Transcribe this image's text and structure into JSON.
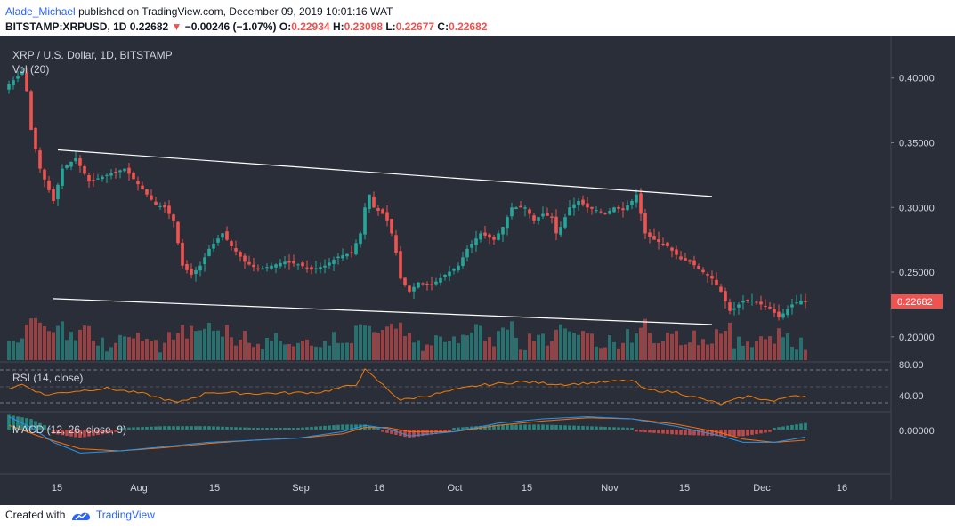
{
  "header": {
    "author": "Alade_Michael",
    "published_text": "published on TradingView.com, December 09, 2019 10:01:16 WAT",
    "symbol": "BITSTAMP:XRPUSD, 1D",
    "last": "0.22682",
    "change": "−0.00246 (−1.07%)",
    "o_label": "O:",
    "o_value": "0.22934",
    "h_label": "H:",
    "h_value": "0.23098",
    "l_label": "L:",
    "l_value": "0.22677",
    "c_label": "C:",
    "c_value": "0.22682"
  },
  "footer": {
    "created_with": "Created with",
    "brand": "TradingView"
  },
  "colors": {
    "background": "#2a2e39",
    "up": "#26a69a",
    "down": "#ef5350",
    "trendline": "#ffffff",
    "rsi": "#f57c00",
    "macd": "#2196f3",
    "signal": "#ff6d00",
    "axis_text": "#d1d4dc",
    "price_tag": "#ef5350"
  },
  "chart_data": {
    "type": "candlestick",
    "title": "XRP / U.S. Dollar, 1D, BITSTAMP",
    "volume_label": "Vol (20)",
    "rsi_label": "RSI (14, close)",
    "macd_label": "MACD (12, 26, close, 9)",
    "price_axis": {
      "ticks": [
        "0.40000",
        "0.35000",
        "0.30000",
        "0.25000",
        "0.20000"
      ],
      "ylim": [
        0.182,
        0.428
      ]
    },
    "rsi_axis": {
      "ticks": [
        "80.00",
        "40.00"
      ]
    },
    "macd_axis": {
      "ticks": [
        "0.00000"
      ]
    },
    "current_price": "0.22682",
    "x_labels": [
      "15",
      "Aug",
      "15",
      "Sep",
      "16",
      "Oct",
      "15",
      "Nov",
      "15",
      "Dec",
      "16"
    ],
    "trendlines": [
      {
        "name": "upper",
        "from": [
          "2019-07-17",
          0.3445
        ],
        "to": [
          "2019-12-11",
          0.3085
        ]
      },
      {
        "name": "lower",
        "from": [
          "2019-07-16",
          0.2295
        ],
        "to": [
          "2019-12-11",
          0.2095
        ]
      }
    ],
    "waypoints": [
      [
        0,
        0.395
      ],
      [
        3,
        0.405
      ],
      [
        4,
        0.39
      ],
      [
        5,
        0.36
      ],
      [
        7,
        0.33
      ],
      [
        10,
        0.305
      ],
      [
        12,
        0.33
      ],
      [
        15,
        0.338
      ],
      [
        18,
        0.32
      ],
      [
        22,
        0.325
      ],
      [
        26,
        0.33
      ],
      [
        29,
        0.318
      ],
      [
        31,
        0.31
      ],
      [
        33,
        0.302
      ],
      [
        35,
        0.3
      ],
      [
        37,
        0.29
      ],
      [
        39,
        0.255
      ],
      [
        41,
        0.248
      ],
      [
        43,
        0.255
      ],
      [
        45,
        0.268
      ],
      [
        48,
        0.28
      ],
      [
        50,
        0.27
      ],
      [
        53,
        0.258
      ],
      [
        56,
        0.252
      ],
      [
        59,
        0.255
      ],
      [
        62,
        0.258
      ],
      [
        65,
        0.256
      ],
      [
        68,
        0.252
      ],
      [
        71,
        0.255
      ],
      [
        74,
        0.262
      ],
      [
        77,
        0.265
      ],
      [
        79,
        0.28
      ],
      [
        80,
        0.3
      ],
      [
        81,
        0.31
      ],
      [
        82,
        0.3
      ],
      [
        84,
        0.295
      ],
      [
        85,
        0.29
      ],
      [
        86,
        0.28
      ],
      [
        87,
        0.265
      ],
      [
        88,
        0.245
      ],
      [
        90,
        0.235
      ],
      [
        92,
        0.242
      ],
      [
        95,
        0.24
      ],
      [
        98,
        0.248
      ],
      [
        101,
        0.255
      ],
      [
        103,
        0.268
      ],
      [
        106,
        0.28
      ],
      [
        109,
        0.275
      ],
      [
        111,
        0.285
      ],
      [
        113,
        0.3
      ],
      [
        116,
        0.3
      ],
      [
        118,
        0.29
      ],
      [
        120,
        0.295
      ],
      [
        122,
        0.292
      ],
      [
        123,
        0.28
      ],
      [
        124,
        0.285
      ],
      [
        126,
        0.3
      ],
      [
        128,
        0.305
      ],
      [
        130,
        0.3
      ],
      [
        132,
        0.298
      ],
      [
        134,
        0.295
      ],
      [
        136,
        0.3
      ],
      [
        138,
        0.298
      ],
      [
        140,
        0.305
      ],
      [
        141,
        0.31
      ],
      [
        142,
        0.295
      ],
      [
        143,
        0.28
      ],
      [
        145,
        0.275
      ],
      [
        148,
        0.27
      ],
      [
        151,
        0.26
      ],
      [
        153,
        0.258
      ],
      [
        156,
        0.25
      ],
      [
        158,
        0.245
      ],
      [
        160,
        0.235
      ],
      [
        162,
        0.22
      ],
      [
        163,
        0.222
      ],
      [
        165,
        0.228
      ],
      [
        167,
        0.228
      ],
      [
        169,
        0.225
      ],
      [
        171,
        0.222
      ],
      [
        173,
        0.215
      ],
      [
        174,
        0.218
      ],
      [
        176,
        0.225
      ],
      [
        178,
        0.228
      ],
      [
        179,
        0.2268
      ]
    ],
    "rsi_waypoints": [
      [
        0,
        52
      ],
      [
        3,
        58
      ],
      [
        8,
        42
      ],
      [
        15,
        48
      ],
      [
        22,
        52
      ],
      [
        30,
        44
      ],
      [
        38,
        30
      ],
      [
        45,
        46
      ],
      [
        55,
        44
      ],
      [
        70,
        46
      ],
      [
        78,
        58
      ],
      [
        80,
        80
      ],
      [
        83,
        63
      ],
      [
        88,
        34
      ],
      [
        95,
        42
      ],
      [
        105,
        56
      ],
      [
        115,
        62
      ],
      [
        125,
        58
      ],
      [
        140,
        64
      ],
      [
        143,
        50
      ],
      [
        150,
        46
      ],
      [
        160,
        28
      ],
      [
        166,
        40
      ],
      [
        172,
        32
      ],
      [
        176,
        42
      ],
      [
        179,
        40
      ]
    ],
    "macd_waypoints": [
      [
        0,
        0.012
      ],
      [
        5,
        0.002
      ],
      [
        10,
        -0.012
      ],
      [
        16,
        -0.022
      ],
      [
        25,
        -0.02
      ],
      [
        35,
        -0.016
      ],
      [
        45,
        -0.012
      ],
      [
        55,
        -0.01
      ],
      [
        65,
        -0.008
      ],
      [
        75,
        -0.002
      ],
      [
        80,
        0.004
      ],
      [
        85,
        0.001
      ],
      [
        90,
        -0.006
      ],
      [
        100,
        -0.002
      ],
      [
        110,
        0.006
      ],
      [
        120,
        0.01
      ],
      [
        130,
        0.012
      ],
      [
        140,
        0.01
      ],
      [
        150,
        0.003
      ],
      [
        160,
        -0.006
      ],
      [
        165,
        -0.012
      ],
      [
        172,
        -0.012
      ],
      [
        179,
        -0.007
      ]
    ],
    "signal_waypoints": [
      [
        0,
        0.004
      ],
      [
        8,
        -0.008
      ],
      [
        16,
        -0.018
      ],
      [
        25,
        -0.02
      ],
      [
        35,
        -0.017
      ],
      [
        45,
        -0.013
      ],
      [
        55,
        -0.01
      ],
      [
        65,
        -0.008
      ],
      [
        75,
        -0.004
      ],
      [
        80,
        0.002
      ],
      [
        85,
        0.002
      ],
      [
        90,
        -0.002
      ],
      [
        100,
        -0.002
      ],
      [
        110,
        0.004
      ],
      [
        120,
        0.008
      ],
      [
        130,
        0.011
      ],
      [
        140,
        0.01
      ],
      [
        150,
        0.005
      ],
      [
        160,
        -0.003
      ],
      [
        165,
        -0.009
      ],
      [
        172,
        -0.012
      ],
      [
        179,
        -0.01
      ]
    ]
  }
}
